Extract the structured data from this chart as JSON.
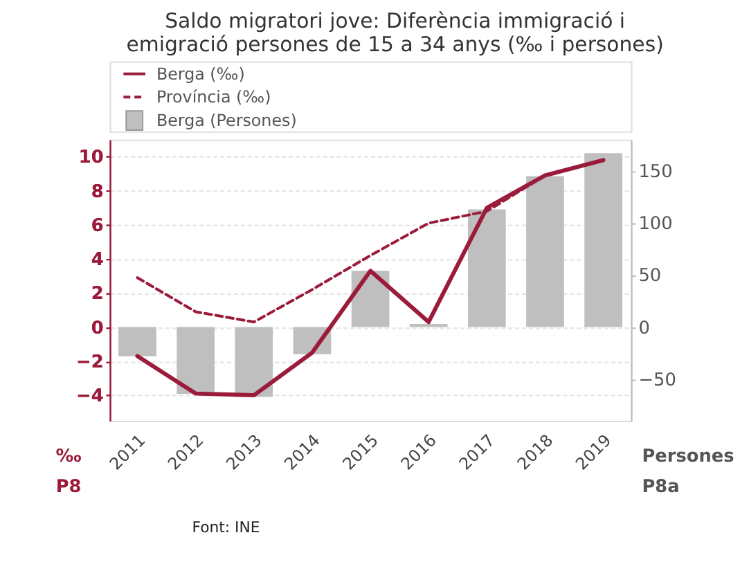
{
  "chart_data": {
    "type": "bar",
    "title": "Saldo migratori jove: Diferència immigració i emigració persones de 15 a 34 anys (‰ i persones)",
    "categories": [
      "2011",
      "2012",
      "2013",
      "2014",
      "2015",
      "2016",
      "2017",
      "2018",
      "2019"
    ],
    "series": [
      {
        "name": "Berga (‰)",
        "type": "line",
        "line_style": "solid",
        "color": "#9b1b3a",
        "values": [
          -1.7,
          -3.9,
          -4.0,
          -1.5,
          3.3,
          0.3,
          7.0,
          8.9,
          9.8
        ]
      },
      {
        "name": "Província (‰)",
        "type": "line",
        "line_style": "dashed",
        "color": "#9b1b3a",
        "values": [
          2.9,
          0.9,
          0.3,
          2.2,
          4.2,
          6.1,
          6.8,
          8.9,
          9.8
        ]
      },
      {
        "name": "Berga (Persones)",
        "axis": "y2",
        "color": "#bfbfbf",
        "values": [
          -28,
          -64,
          -67,
          -26,
          54,
          3,
          113,
          145,
          167
        ]
      }
    ],
    "ylabel": "‰\nP8",
    "y2label": "Persones\nP8a",
    "ylim": [
      -5.5,
      11
    ],
    "yticks": [
      -4,
      -2,
      0,
      2,
      4,
      6,
      8,
      10
    ],
    "y2lim": [
      -90,
      180
    ],
    "y2ticks": [
      -50,
      0,
      50,
      100,
      150
    ],
    "grid": "y",
    "legend": "top left",
    "marker": "none",
    "annotations": [
      "Font: INE"
    ]
  }
}
